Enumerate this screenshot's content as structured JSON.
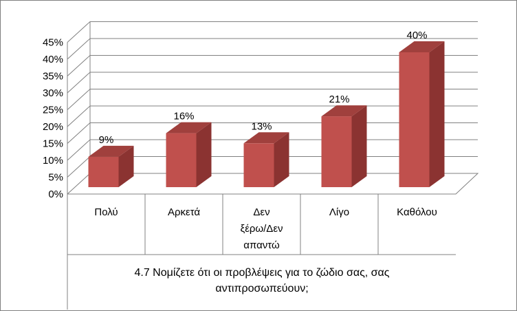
{
  "chart_data": {
    "type": "bar",
    "categories": [
      [
        "Πολύ"
      ],
      [
        "Αρκετά"
      ],
      [
        "Δεν",
        "ξέρω/Δεν",
        "απαντώ"
      ],
      [
        "Λίγο"
      ],
      [
        "Καθόλου"
      ]
    ],
    "values": [
      9,
      16,
      13,
      21,
      40
    ],
    "data_labels": [
      "9%",
      "16%",
      "13%",
      "21%",
      "40%"
    ],
    "yticks": [
      "0%",
      "5%",
      "10%",
      "15%",
      "20%",
      "25%",
      "30%",
      "35%",
      "40%",
      "45%"
    ],
    "ylim": [
      0,
      45
    ],
    "xlabel": [
      "4.7 Νομίζετε ότι οι προβλέψεις για το ζώδιο σας, σας",
      "αντιπροσωπεύουν;"
    ],
    "grid": true,
    "three_d": true,
    "colors": {
      "bar_front": "#c0504d",
      "bar_side": "#8b3331",
      "bar_top": "#a0403d",
      "grid": "#808080"
    }
  }
}
